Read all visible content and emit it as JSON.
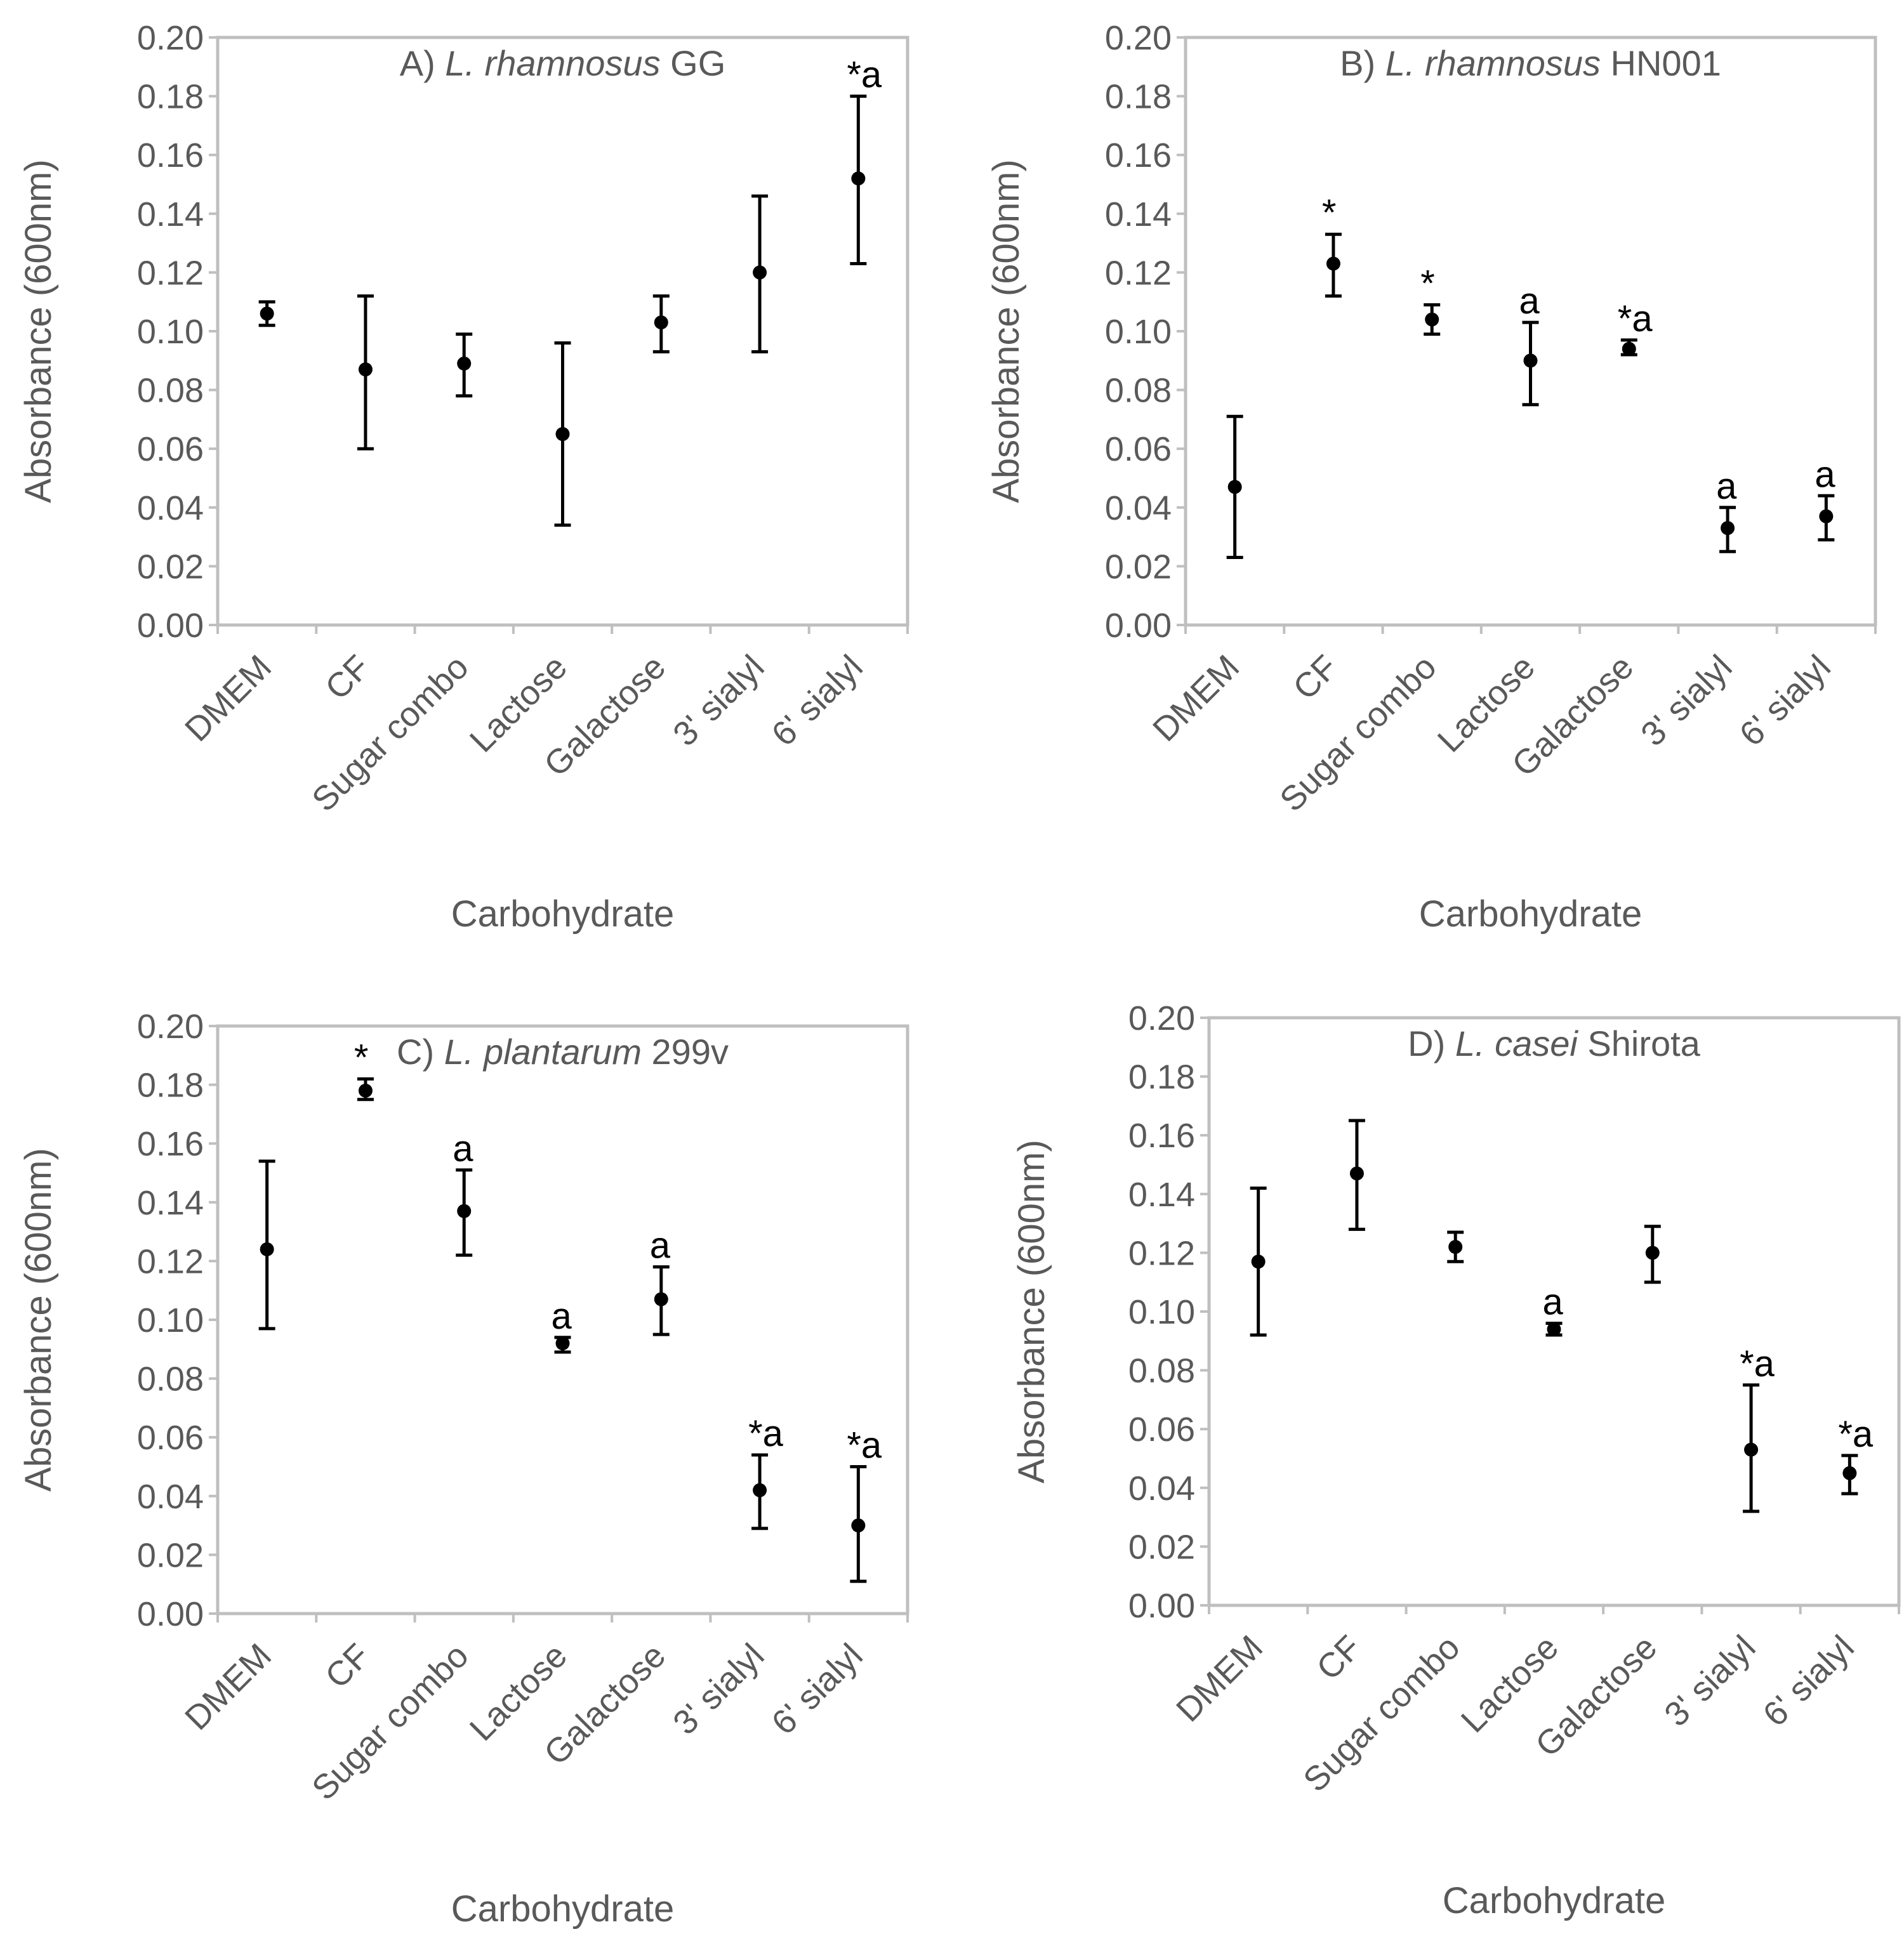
{
  "colors": {
    "axis": "#bfbfbf",
    "text": "#595959",
    "marker": "#000000",
    "background": "#ffffff"
  },
  "chart_data": [
    {
      "type": "scatter",
      "panel": "A",
      "title_prefix": "A) ",
      "title_italic": "L. rhamnosus",
      "title_suffix": " GG",
      "xlabel": "Carbohydrate",
      "ylabel": "Absorbance (600nm)",
      "ylim": [
        0,
        0.2
      ],
      "yticks": [
        "0.00",
        "0.02",
        "0.04",
        "0.06",
        "0.08",
        "0.10",
        "0.12",
        "0.14",
        "0.16",
        "0.18",
        "0.20"
      ],
      "categories": [
        "DMEM",
        "CF",
        "Sugar combo",
        "Lactose",
        "Galactose",
        "3' sialyl",
        "6' sialyl"
      ],
      "values": [
        0.106,
        0.087,
        0.089,
        0.065,
        0.103,
        0.12,
        0.152
      ],
      "err_low": [
        0.102,
        0.06,
        0.078,
        0.034,
        0.093,
        0.093,
        0.123
      ],
      "err_high": [
        0.11,
        0.112,
        0.099,
        0.096,
        0.112,
        0.146,
        0.18
      ],
      "labels": [
        "",
        "",
        "",
        "",
        "",
        "",
        "*a"
      ]
    },
    {
      "type": "scatter",
      "panel": "B",
      "title_prefix": "B) ",
      "title_italic": "L. rhamnosus",
      "title_suffix": " HN001",
      "xlabel": "Carbohydrate",
      "ylabel": "Absorbance (600nm)",
      "ylim": [
        0,
        0.2
      ],
      "yticks": [
        "0.00",
        "0.02",
        "0.04",
        "0.06",
        "0.08",
        "0.10",
        "0.12",
        "0.14",
        "0.16",
        "0.18",
        "0.20"
      ],
      "categories": [
        "DMEM",
        "CF",
        "Sugar combo",
        "Lactose",
        "Galactose",
        "3' sialyl",
        "6' sialyl"
      ],
      "values": [
        0.047,
        0.123,
        0.104,
        0.09,
        0.094,
        0.033,
        0.037
      ],
      "err_low": [
        0.023,
        0.112,
        0.099,
        0.075,
        0.092,
        0.025,
        0.029
      ],
      "err_high": [
        0.071,
        0.133,
        0.109,
        0.103,
        0.097,
        0.04,
        0.044
      ],
      "labels": [
        "",
        "*",
        "*",
        "a",
        "*a",
        "a",
        "a"
      ]
    },
    {
      "type": "scatter",
      "panel": "C",
      "title_prefix": "C) ",
      "title_italic": "L. plantarum",
      "title_suffix": " 299v",
      "xlabel": "Carbohydrate",
      "ylabel": "Absorbance (600nm)",
      "ylim": [
        0,
        0.2
      ],
      "yticks": [
        "0.00",
        "0.02",
        "0.04",
        "0.06",
        "0.08",
        "0.10",
        "0.12",
        "0.14",
        "0.16",
        "0.18",
        "0.20"
      ],
      "categories": [
        "DMEM",
        "CF",
        "Sugar combo",
        "Lactose",
        "Galactose",
        "3' sialyl",
        "6' sialyl"
      ],
      "values": [
        0.124,
        0.178,
        0.137,
        0.092,
        0.107,
        0.042,
        0.03
      ],
      "err_low": [
        0.097,
        0.175,
        0.122,
        0.089,
        0.095,
        0.029,
        0.011
      ],
      "err_high": [
        0.154,
        0.182,
        0.151,
        0.094,
        0.118,
        0.054,
        0.05
      ],
      "labels": [
        "",
        "*",
        "a",
        "a",
        "a",
        "*a",
        "*a"
      ]
    },
    {
      "type": "scatter",
      "panel": "D",
      "title_prefix": "D) ",
      "title_italic": "L. casei",
      "title_suffix": " Shirota",
      "xlabel": "Carbohydrate",
      "ylabel": "Absorbance (600nm)",
      "ylim": [
        0,
        0.2
      ],
      "yticks": [
        "0.00",
        "0.02",
        "0.04",
        "0.06",
        "0.08",
        "0.10",
        "0.12",
        "0.14",
        "0.16",
        "0.18",
        "0.20"
      ],
      "categories": [
        "DMEM",
        "CF",
        "Sugar combo",
        "Lactose",
        "Galactose",
        "3' sialyl",
        "6' sialyl"
      ],
      "values": [
        0.117,
        0.147,
        0.122,
        0.094,
        0.12,
        0.053,
        0.045
      ],
      "err_low": [
        0.092,
        0.128,
        0.117,
        0.092,
        0.11,
        0.032,
        0.038
      ],
      "err_high": [
        0.142,
        0.165,
        0.127,
        0.096,
        0.129,
        0.075,
        0.051
      ],
      "labels": [
        "",
        "",
        "",
        "a",
        "",
        "*a",
        "*a"
      ]
    }
  ]
}
